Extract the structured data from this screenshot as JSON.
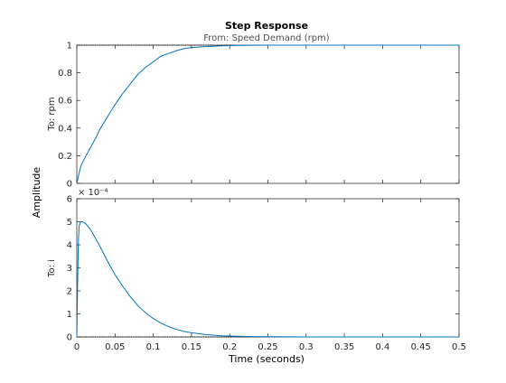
{
  "chart_data": {
    "type": "line",
    "title": "Step Response",
    "subtitle": "From: Speed Demand (rpm)",
    "xlabel": "Time (seconds)",
    "ylabel": "Amplitude",
    "xlim": [
      0,
      0.5
    ],
    "x_ticks": [
      "0",
      "0.05",
      "0.1",
      "0.15",
      "0.2",
      "0.25",
      "0.3",
      "0.35",
      "0.4",
      "0.45",
      "0.5"
    ],
    "line_color": "#0072bd",
    "subplots": [
      {
        "ylabel": "To: rpm",
        "ylim": [
          0,
          1
        ],
        "y_ticks": [
          "0",
          "0.2",
          "0.4",
          "0.6",
          "0.8",
          "1"
        ],
        "steady_state": 1,
        "series": {
          "x": [
            0,
            0.002,
            0.005,
            0.01,
            0.015,
            0.02,
            0.025,
            0.03,
            0.04,
            0.05,
            0.06,
            0.07,
            0.08,
            0.09,
            0.1,
            0.11,
            0.12,
            0.13,
            0.14,
            0.15,
            0.17,
            0.19,
            0.21,
            0.23,
            0.25,
            0.3,
            0.35,
            0.4,
            0.45,
            0.5
          ],
          "y": [
            0,
            0.05,
            0.12,
            0.18,
            0.23,
            0.28,
            0.33,
            0.39,
            0.48,
            0.57,
            0.65,
            0.72,
            0.79,
            0.84,
            0.88,
            0.92,
            0.94,
            0.96,
            0.975,
            0.983,
            0.99,
            0.995,
            0.998,
            0.999,
            1,
            1,
            1,
            1,
            1,
            1
          ]
        }
      },
      {
        "ylabel": "To: i",
        "ylim": [
          0,
          6
        ],
        "y_ticks": [
          "0",
          "1",
          "2",
          "3",
          "4",
          "5",
          "6"
        ],
        "exponent_label": "× 10⁻⁴",
        "steady_state": 0,
        "series": {
          "x": [
            0,
            0.001,
            0.002,
            0.003,
            0.005,
            0.008,
            0.012,
            0.016,
            0.02,
            0.025,
            0.03,
            0.04,
            0.05,
            0.06,
            0.07,
            0.08,
            0.09,
            0.1,
            0.11,
            0.12,
            0.13,
            0.14,
            0.15,
            0.17,
            0.19,
            0.21,
            0.23,
            0.25,
            0.3,
            0.35,
            0.4,
            0.45,
            0.5
          ],
          "y": [
            0,
            2.2,
            4.1,
            4.8,
            5.0,
            5.0,
            4.9,
            4.75,
            4.55,
            4.25,
            3.95,
            3.3,
            2.7,
            2.2,
            1.75,
            1.35,
            1.05,
            0.8,
            0.6,
            0.45,
            0.33,
            0.24,
            0.18,
            0.1,
            0.05,
            0.03,
            0.015,
            0.008,
            0,
            0,
            0,
            0,
            0
          ]
        }
      }
    ]
  }
}
